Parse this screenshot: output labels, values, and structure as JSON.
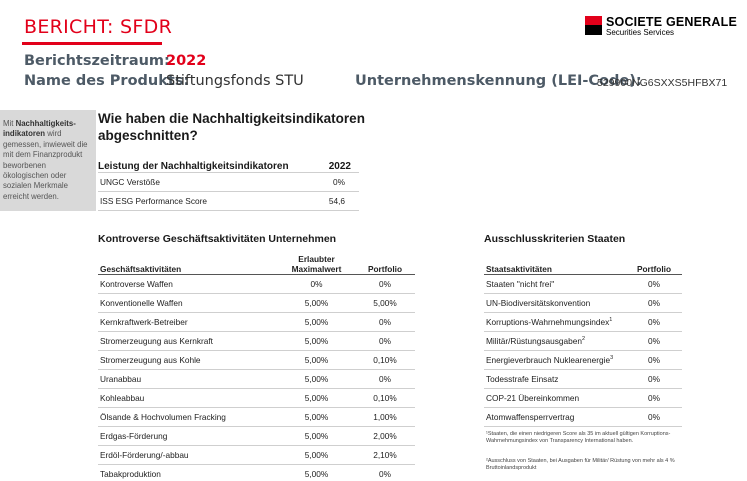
{
  "header": {
    "title": "BERICHT: SFDR",
    "period_label": "Berichtszeitraum:",
    "period_value": "2022",
    "product_label": "Name des Produkts:",
    "product_value": "Stiftungsfonds STU",
    "lei_label": "Unternehmenskennung (LEI-Code):",
    "lei_value": "529900NG6SXXS5HFBX71"
  },
  "brand": {
    "name": "SOCIETE GENERALE",
    "sub": "Securities Services",
    "colors": {
      "red": "#e2001a",
      "black": "#000000"
    }
  },
  "side_note": {
    "bold": "Nachhaltigkeits-indikatoren",
    "prefix": "Mit",
    "text": "wird gemessen, inwieweit die mit dem Finanzprodukt beworbenen ökologischen oder sozialen Merkmale erreicht werden."
  },
  "main": {
    "heading": "Wie haben die Nachhaltigkeitsindikatoren abgeschnitten?",
    "perf_table": {
      "title": "Leistung der Nachhaltigkeitsindikatoren",
      "year": "2022",
      "rows": [
        {
          "label": "UNGC Verstöße",
          "value": "0%"
        },
        {
          "label": "ISS ESG Performance Score",
          "value": "54,6"
        }
      ]
    }
  },
  "controversial": {
    "title": "Kontroverse Geschäftsaktivitäten Unternehmen",
    "col_activity": "Geschäftsaktivitäten",
    "col_max": "Erlaubter Maximalwert",
    "col_portfolio": "Portfolio",
    "rows": [
      {
        "label": "Kontroverse Waffen",
        "max": "0%",
        "portfolio": "0%"
      },
      {
        "label": "Konventionelle Waffen",
        "max": "5,00%",
        "portfolio": "5,00%"
      },
      {
        "label": "Kernkraftwerk-Betreiber",
        "max": "5,00%",
        "portfolio": "0%"
      },
      {
        "label": "Stromerzeugung aus Kernkraft",
        "max": "5,00%",
        "portfolio": "0%"
      },
      {
        "label": "Stromerzeugung aus Kohle",
        "max": "5,00%",
        "portfolio": "0,10%"
      },
      {
        "label": "Uranabbau",
        "max": "5,00%",
        "portfolio": "0%"
      },
      {
        "label": "Kohleabbau",
        "max": "5,00%",
        "portfolio": "0,10%"
      },
      {
        "label": "Ölsande & Hochvolumen Fracking",
        "max": "5,00%",
        "portfolio": "1,00%"
      },
      {
        "label": "Erdgas-Förderung",
        "max": "5,00%",
        "portfolio": "2,00%"
      },
      {
        "label": "Erdöl-Förderung/-abbau",
        "max": "5,00%",
        "portfolio": "2,10%"
      },
      {
        "label": "Tabakproduktion",
        "max": "5,00%",
        "portfolio": "0%"
      }
    ]
  },
  "exclusion": {
    "title": "Ausschlusskriterien Staaten",
    "col_activity": "Staatsaktivitäten",
    "col_portfolio": "Portfolio",
    "rows": [
      {
        "label": "Staaten \"nicht frei\"",
        "sup": "",
        "portfolio": "0%"
      },
      {
        "label": "UN-Biodiversitätskonvention",
        "sup": "",
        "portfolio": "0%"
      },
      {
        "label": "Korruptions-Wahrnehmungsindex",
        "sup": "1",
        "portfolio": "0%"
      },
      {
        "label": "Militär/Rüstungsausgaben",
        "sup": "2",
        "portfolio": "0%"
      },
      {
        "label": "Energieverbrauch Nuklearenergie",
        "sup": "3",
        "portfolio": "0%"
      },
      {
        "label": "Todesstrafe Einsatz",
        "sup": "",
        "portfolio": "0%"
      },
      {
        "label": "COP-21 Übereinkommen",
        "sup": "",
        "portfolio": "0%"
      },
      {
        "label": "Atomwaffensperrvertrag",
        "sup": "",
        "portfolio": "0%"
      }
    ],
    "footnote1": "¹Staaten, die einen niedrigeren Score als 35 im aktuell gültigen Korruptions-Wahrnehmungsindex von Transparency International haben.",
    "footnote2": "²Ausschluss von Staaten, bei Ausgaben für Militär/ Rüstung von mehr als 4 % Bruttoinlandsprodukt"
  }
}
